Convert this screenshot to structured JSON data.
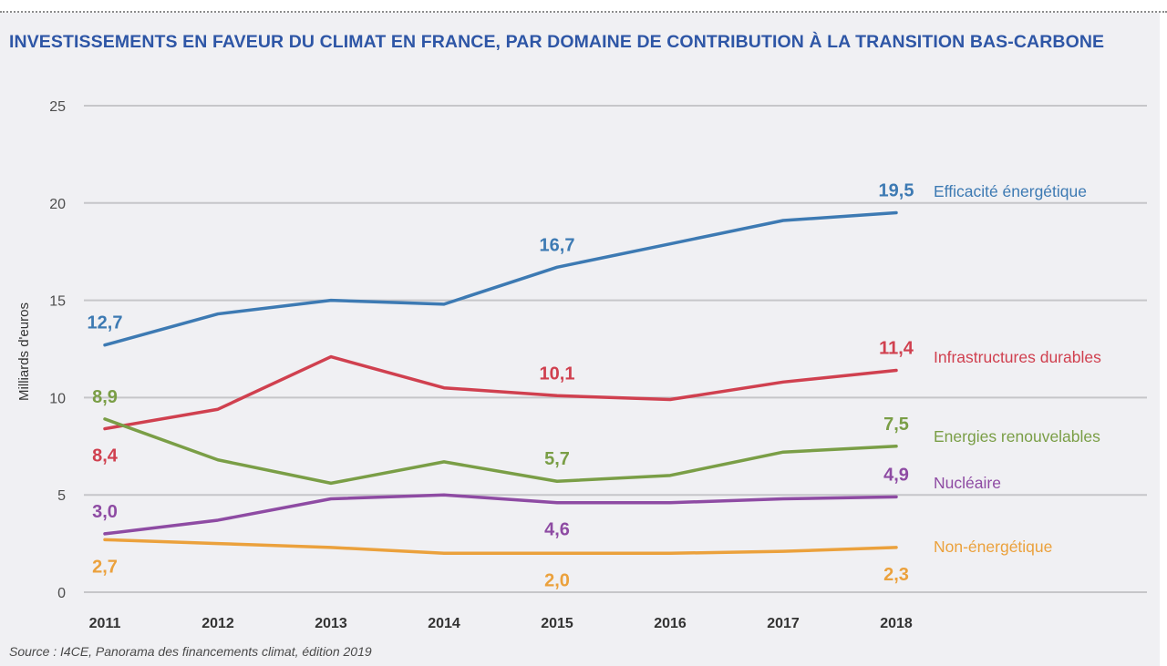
{
  "source": "Source : I4CE, Panorama des financements climat, édition 2019",
  "chart_data": {
    "type": "line",
    "title": "INVESTISSEMENTS EN FAVEUR DU CLIMAT EN FRANCE, PAR DOMAINE DE CONTRIBUTION À LA TRANSITION BAS-CARBONE",
    "xlabel": "",
    "ylabel": "Milliards d'euros",
    "x": [
      "2011",
      "2012",
      "2013",
      "2014",
      "2015",
      "2016",
      "2017",
      "2018"
    ],
    "ylim": [
      0,
      25
    ],
    "yticks": [
      "0",
      "5",
      "10",
      "15",
      "20",
      "25"
    ],
    "grid": true,
    "legend": "right (inline labels at line ends)",
    "series": [
      {
        "name": "Efficacité énergétique",
        "color": "#3d7ab3",
        "values": [
          12.7,
          14.3,
          15.0,
          14.8,
          16.7,
          17.9,
          19.1,
          19.5
        ],
        "labels": [
          {
            "index": 0,
            "text": "12,7",
            "pos": "above"
          },
          {
            "index": 4,
            "text": "16,7",
            "pos": "above"
          },
          {
            "index": 7,
            "text": "19,5",
            "pos": "above"
          }
        ]
      },
      {
        "name": "Infrastructures durables",
        "color": "#d0404f",
        "values": [
          8.4,
          9.4,
          12.1,
          10.5,
          10.1,
          9.9,
          10.8,
          11.4
        ],
        "labels": [
          {
            "index": 0,
            "text": "8,4",
            "pos": "below"
          },
          {
            "index": 4,
            "text": "10,1",
            "pos": "above"
          },
          {
            "index": 7,
            "text": "11,4",
            "pos": "above"
          }
        ]
      },
      {
        "name": "Energies renouvelables",
        "color": "#7a9e46",
        "values": [
          8.9,
          6.8,
          5.6,
          6.7,
          5.7,
          6.0,
          7.2,
          7.5
        ],
        "labels": [
          {
            "index": 0,
            "text": "8,9",
            "pos": "above"
          },
          {
            "index": 4,
            "text": "5,7",
            "pos": "above"
          },
          {
            "index": 7,
            "text": "7,5",
            "pos": "above"
          }
        ]
      },
      {
        "name": "Nucléaire",
        "color": "#8e4ba3",
        "values": [
          3.0,
          3.7,
          4.8,
          5.0,
          4.6,
          4.6,
          4.8,
          4.9
        ],
        "labels": [
          {
            "index": 0,
            "text": "3,0",
            "pos": "above"
          },
          {
            "index": 4,
            "text": "4,6",
            "pos": "below"
          },
          {
            "index": 7,
            "text": "4,9",
            "pos": "above"
          }
        ]
      },
      {
        "name": "Non-énergétique",
        "color": "#eba13c",
        "values": [
          2.7,
          2.5,
          2.3,
          2.0,
          2.0,
          2.0,
          2.1,
          2.3
        ],
        "labels": [
          {
            "index": 0,
            "text": "2,7",
            "pos": "below"
          },
          {
            "index": 4,
            "text": "2,0",
            "pos": "below"
          },
          {
            "index": 7,
            "text": "2,3",
            "pos": "below"
          }
        ]
      }
    ]
  }
}
